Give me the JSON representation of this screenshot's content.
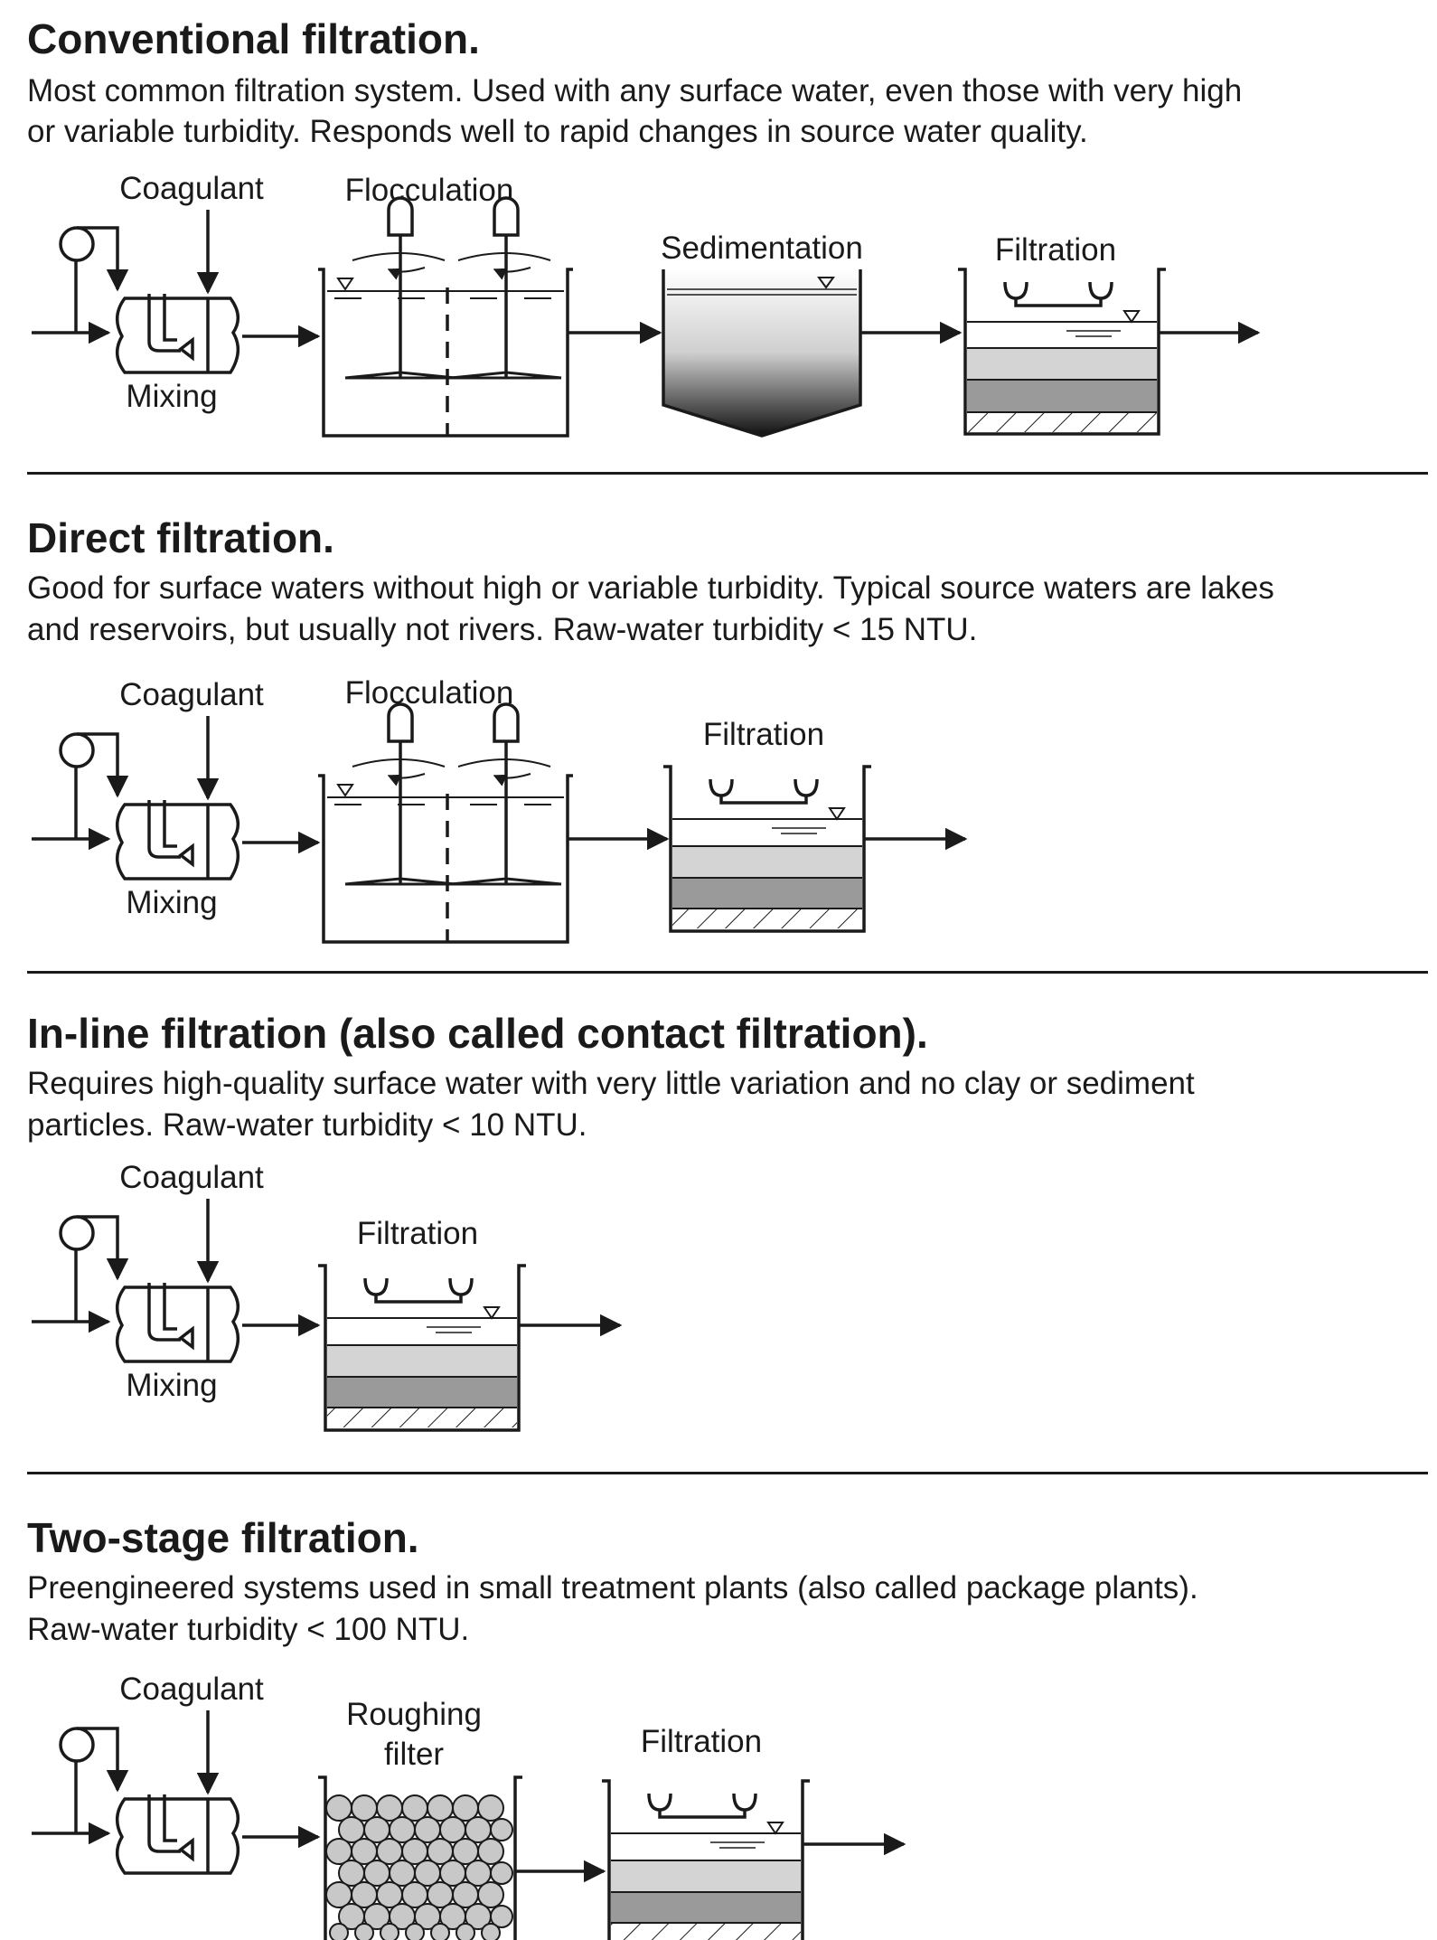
{
  "sections": [
    {
      "title": "Conventional filtration.",
      "description": [
        "Most common filtration system. Used with any surface water, even those with very high",
        "or variable turbidity. Responds well to rapid changes in source water quality."
      ],
      "labels": {
        "coagulant": "Coagulant",
        "mixing": "Mixing",
        "flocculation": "Flocculation",
        "sedimentation": "Sedimentation",
        "filtration": "Filtration"
      }
    },
    {
      "title": "Direct filtration.",
      "description": [
        "Good for surface waters without high or variable turbidity. Typical source waters are lakes",
        "and reservoirs, but usually not rivers. Raw-water turbidity < 15 NTU."
      ],
      "labels": {
        "coagulant": "Coagulant",
        "mixing": "Mixing",
        "flocculation": "Flocculation",
        "filtration": "Filtration"
      }
    },
    {
      "title": "In-line filtration (also called contact filtration).",
      "description": [
        "Requires high-quality surface water with very little variation and no clay or sediment",
        "particles. Raw-water turbidity < 10 NTU."
      ],
      "labels": {
        "coagulant": "Coagulant",
        "mixing": "Mixing",
        "filtration": "Filtration"
      }
    },
    {
      "title": "Two-stage filtration.",
      "description": [
        "Preengineered systems used in small treatment plants (also called package plants).",
        "Raw-water turbidity < 100 NTU."
      ],
      "labels": {
        "coagulant": "Coagulant",
        "roughing_filter": [
          "Roughing",
          "filter"
        ],
        "filtration": "Filtration"
      }
    }
  ],
  "colors": {
    "ink": "#1a1a1a",
    "media_light": "#d4d4d4",
    "media_dark": "#9a9a9a",
    "gravel": "#c8c8c8"
  }
}
